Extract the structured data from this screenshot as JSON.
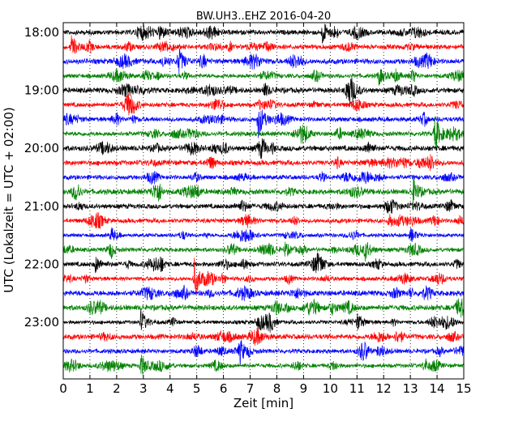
{
  "chart_data": {
    "type": "line",
    "title": "BW.UH3..EHZ 2016-04-20",
    "xlabel": "Zeit  [min]",
    "ylabel": "UTC (Lokalzeit = UTC + 02:00)",
    "xlim": [
      0,
      15
    ],
    "x_ticks": [
      "0",
      "1",
      "2",
      "3",
      "4",
      "5",
      "6",
      "7",
      "8",
      "9",
      "10",
      "11",
      "12",
      "13",
      "14",
      "15"
    ],
    "y_tick_labels": [
      "18:00",
      "19:00",
      "20:00",
      "21:00",
      "22:00",
      "23:00"
    ],
    "trace_start_times": [
      "18:00",
      "18:15",
      "18:30",
      "18:45",
      "19:00",
      "19:15",
      "19:30",
      "19:45",
      "20:00",
      "20:15",
      "20:30",
      "20:45",
      "21:00",
      "21:15",
      "21:30",
      "21:45",
      "22:00",
      "22:15",
      "22:30",
      "22:45",
      "23:00",
      "23:15",
      "23:30",
      "23:45"
    ],
    "trace_colors": [
      "#000000",
      "#ff0000",
      "#0000ff",
      "#008000"
    ],
    "grid": "vertical dotted",
    "events": [
      {
        "trace": 0,
        "x": 3.6,
        "amp": 0.55
      },
      {
        "trace": 0,
        "x": 9.7,
        "amp": 0.75
      },
      {
        "trace": 1,
        "x": 0.3,
        "amp": 0.7
      },
      {
        "trace": 2,
        "x": 4.3,
        "amp": 0.9
      },
      {
        "trace": 2,
        "x": 3.7,
        "amp": 0.45
      },
      {
        "trace": 3,
        "x": 11.8,
        "amp": 0.6
      },
      {
        "trace": 4,
        "x": 10.6,
        "amp": 0.7
      },
      {
        "trace": 4,
        "x": 7.5,
        "amp": 0.5
      },
      {
        "trace": 6,
        "x": 7.3,
        "amp": 1.2
      },
      {
        "trace": 7,
        "x": 13.9,
        "amp": 1.3
      },
      {
        "trace": 11,
        "x": 13.1,
        "amp": 0.9
      },
      {
        "trace": 13,
        "x": 12.2,
        "amp": 0.5
      },
      {
        "trace": 14,
        "x": 13.0,
        "amp": 0.5
      },
      {
        "trace": 15,
        "x": 11.3,
        "amp": 0.6
      },
      {
        "trace": 15,
        "x": 8.3,
        "amp": 0.45
      },
      {
        "trace": 16,
        "x": 1.2,
        "amp": 0.5
      },
      {
        "trace": 17,
        "x": 4.9,
        "amp": 1.3
      },
      {
        "trace": 19,
        "x": 10.0,
        "amp": 0.5
      },
      {
        "trace": 20,
        "x": 2.9,
        "amp": 0.8
      },
      {
        "trace": 20,
        "x": 11.0,
        "amp": 0.6
      },
      {
        "trace": 22,
        "x": 6.6,
        "amp": 0.7
      },
      {
        "trace": 22,
        "x": 11.8,
        "amp": 0.55
      },
      {
        "trace": 23,
        "x": 2.9,
        "amp": 0.75
      }
    ]
  }
}
